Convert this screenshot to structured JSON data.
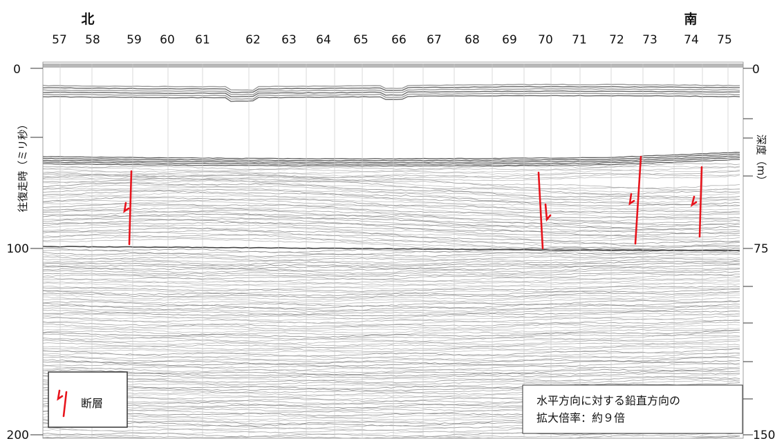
{
  "directions": {
    "north": "北",
    "south": "南"
  },
  "shot_points": [
    "57",
    "58",
    "59",
    "60",
    "61",
    "62",
    "63",
    "64",
    "65",
    "66",
    "67",
    "68",
    "69",
    "70",
    "71",
    "72",
    "73",
    "74",
    "75"
  ],
  "left_axis": {
    "label": "往復走時（ミリ秒）",
    "ticks": [
      "0",
      "100",
      "200"
    ]
  },
  "right_axis": {
    "label": "深度（m）",
    "ticks": [
      "0",
      "75",
      "150"
    ]
  },
  "legend": {
    "label": "断層",
    "symbol": "fault-icon"
  },
  "note": {
    "line1": "水平方向に対する鉛直方向の",
    "line2": "拡大倍率：約９倍"
  },
  "colors": {
    "fault": "#e8141c",
    "trace": "#8a8a8a",
    "seafloor": "#555555"
  }
}
